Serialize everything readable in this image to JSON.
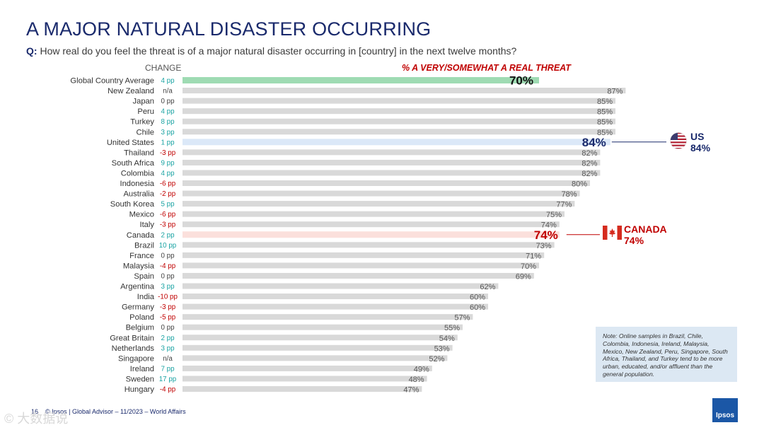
{
  "header": {
    "title": "A MAJOR NATURAL DISASTER OCCURRING",
    "question_label": "Q:",
    "question_text": "How real do you feel the threat is of a major natural disaster occurring in [country] in the next twelve months?"
  },
  "column_headers": {
    "change": "CHANGE",
    "metric": "% A VERY/SOMEWHAT A REAL THREAT"
  },
  "chart_data": {
    "type": "bar",
    "orientation": "horizontal",
    "title": "% A VERY/SOMEWHAT A REAL THREAT",
    "value_unit": "%",
    "xlim": [
      0,
      100
    ],
    "colors": {
      "default": "#d9d9d9",
      "global": "#9fdbb3",
      "us": "#dbe8f8",
      "canada": "#fbe0dc",
      "positive_change": "#1aa3a3",
      "negative_change": "#c00000",
      "neutral_change": "#444444"
    },
    "rows": [
      {
        "country": "Global Country Average",
        "change": "4 pp",
        "value": 70,
        "label": "70%",
        "highlight": "global"
      },
      {
        "country": "New Zealand",
        "change": "n/a",
        "value": 87,
        "label": "87%"
      },
      {
        "country": "Japan",
        "change": "0 pp",
        "value": 85,
        "label": "85%"
      },
      {
        "country": "Peru",
        "change": "4 pp",
        "value": 85,
        "label": "85%"
      },
      {
        "country": "Turkey",
        "change": "8 pp",
        "value": 85,
        "label": "85%"
      },
      {
        "country": "Chile",
        "change": "3 pp",
        "value": 85,
        "label": "85%"
      },
      {
        "country": "United States",
        "change": "1 pp",
        "value": 84,
        "label": "84%",
        "highlight": "us"
      },
      {
        "country": "Thailand",
        "change": "-3 pp",
        "value": 82,
        "label": "82%"
      },
      {
        "country": "South Africa",
        "change": "9 pp",
        "value": 82,
        "label": "82%"
      },
      {
        "country": "Colombia",
        "change": "4 pp",
        "value": 82,
        "label": "82%"
      },
      {
        "country": "Indonesia",
        "change": "-6 pp",
        "value": 80,
        "label": "80%"
      },
      {
        "country": "Australia",
        "change": "-2 pp",
        "value": 78,
        "label": "78%"
      },
      {
        "country": "South Korea",
        "change": "5 pp",
        "value": 77,
        "label": "77%"
      },
      {
        "country": "Mexico",
        "change": "-6 pp",
        "value": 75,
        "label": "75%"
      },
      {
        "country": "Italy",
        "change": "-3 pp",
        "value": 74,
        "label": "74%"
      },
      {
        "country": "Canada",
        "change": "2 pp",
        "value": 74,
        "label": "74%",
        "highlight": "canada"
      },
      {
        "country": "Brazil",
        "change": "10 pp",
        "value": 73,
        "label": "73%"
      },
      {
        "country": "France",
        "change": "0 pp",
        "value": 71,
        "label": "71%"
      },
      {
        "country": "Malaysia",
        "change": "-4 pp",
        "value": 70,
        "label": "70%"
      },
      {
        "country": "Spain",
        "change": "0 pp",
        "value": 69,
        "label": "69%"
      },
      {
        "country": "Argentina",
        "change": "3 pp",
        "value": 62,
        "label": "62%"
      },
      {
        "country": "India",
        "change": "-10 pp",
        "value": 60,
        "label": "60%"
      },
      {
        "country": "Germany",
        "change": "-3 pp",
        "value": 60,
        "label": "60%"
      },
      {
        "country": "Poland",
        "change": "-5 pp",
        "value": 57,
        "label": "57%"
      },
      {
        "country": "Belgium",
        "change": "0 pp",
        "value": 55,
        "label": "55%"
      },
      {
        "country": "Great Britain",
        "change": "2 pp",
        "value": 54,
        "label": "54%"
      },
      {
        "country": "Netherlands",
        "change": "3 pp",
        "value": 53,
        "label": "53%"
      },
      {
        "country": "Singapore",
        "change": "n/a",
        "value": 52,
        "label": "52%"
      },
      {
        "country": "Ireland",
        "change": "7 pp",
        "value": 49,
        "label": "49%"
      },
      {
        "country": "Sweden",
        "change": "17 pp",
        "value": 48,
        "label": "48%"
      },
      {
        "country": "Hungary",
        "change": "-4 pp",
        "value": 47,
        "label": "47%"
      }
    ]
  },
  "callouts": {
    "us": {
      "name": "US",
      "value": "84%",
      "icon": "us-flag-icon",
      "color": "#1a2a6c"
    },
    "canada": {
      "name": "CANADA",
      "value": "74%",
      "icon": "canada-flag-icon",
      "color": "#c00000"
    }
  },
  "note": "Note: Online samples in Brazil, Chile, Colombia, Indonesia, Ireland, Malaysia, Mexico, New Zealand, Peru, Singapore, South Africa, Thailand, and Turkey tend to be more urban, educated, and/or affluent than the general population.",
  "footer": {
    "page_number": "16",
    "source": "© Ipsos | Global Advisor – 11/2023 – World Affairs"
  },
  "logo_text": "Ipsos",
  "watermark": "© 大数据说"
}
